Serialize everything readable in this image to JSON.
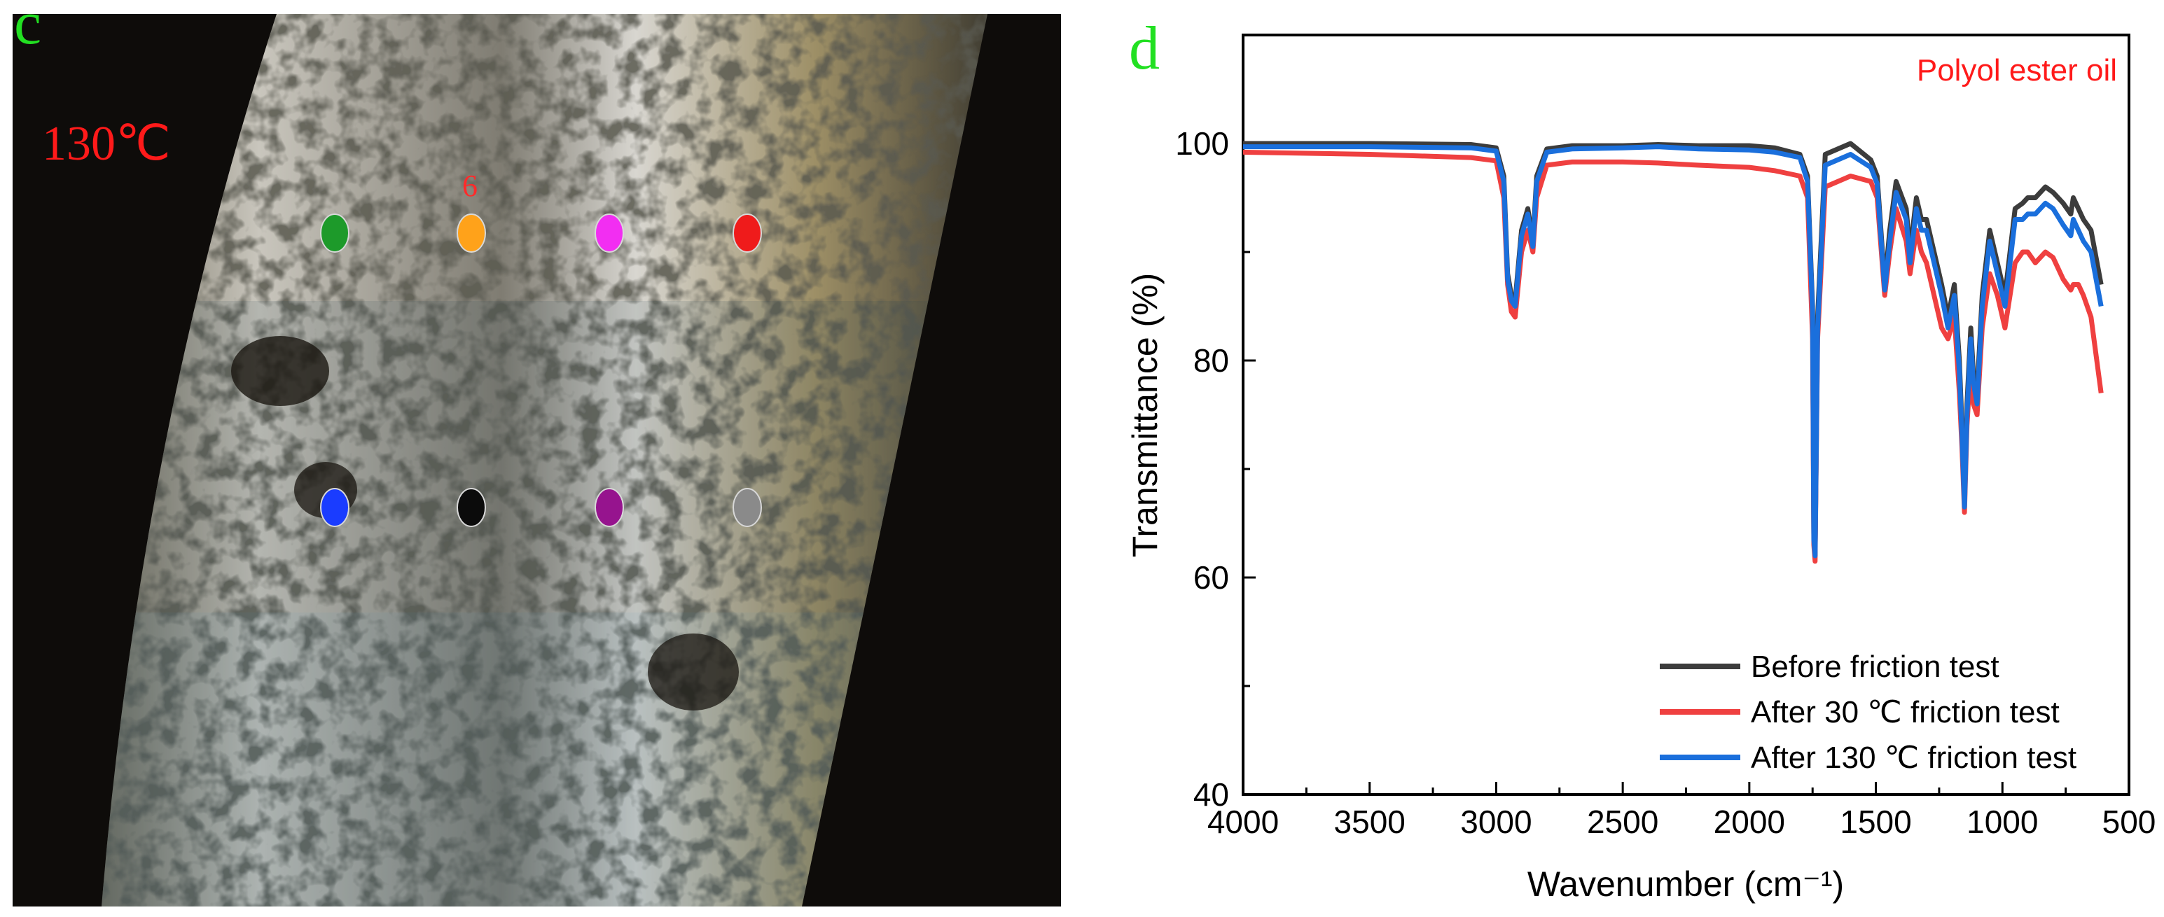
{
  "panel_c": {
    "letter": "c",
    "temperature": "130℃",
    "spot_label": "6",
    "spots": [
      {
        "color": "#1d9a2a"
      },
      {
        "color": "#ffa21a"
      },
      {
        "color": "#f22ef2"
      },
      {
        "color": "#ef1b1b"
      },
      {
        "color": "#1a3cff"
      },
      {
        "color": "#0b0b0b"
      },
      {
        "color": "#96148e"
      },
      {
        "color": "#8a8a8a"
      }
    ]
  },
  "panel_d": {
    "letter": "d",
    "annotation": "Polyol ester oil"
  },
  "chart_data": {
    "type": "line",
    "title": "",
    "xlabel": "Wavenumber (cm⁻¹)",
    "ylabel": "Transmittance (%)",
    "xlim": [
      4000,
      500
    ],
    "ylim": [
      40,
      110
    ],
    "x_reversed": true,
    "xticks": [
      "4000",
      "3500",
      "3000",
      "2500",
      "2000",
      "1500",
      "1000",
      "500"
    ],
    "yticks": [
      "40",
      "60",
      "80",
      "100"
    ],
    "legend_position": "bottom-right",
    "grid": false,
    "series": [
      {
        "name": "Before friction test",
        "color": "#3c3c3c",
        "x": [
          4000,
          3500,
          3100,
          3000,
          2970,
          2955,
          2940,
          2925,
          2900,
          2875,
          2855,
          2840,
          2800,
          2700,
          2500,
          2360,
          2200,
          2000,
          1900,
          1800,
          1770,
          1750,
          1745,
          1740,
          1730,
          1700,
          1600,
          1520,
          1495,
          1465,
          1445,
          1420,
          1380,
          1365,
          1340,
          1320,
          1300,
          1270,
          1240,
          1215,
          1190,
          1170,
          1160,
          1150,
          1140,
          1125,
          1115,
          1100,
          1080,
          1050,
          1020,
          990,
          950,
          920,
          900,
          870,
          830,
          800,
          760,
          730,
          720,
          700,
          680,
          650,
          610
        ],
        "y": [
          100,
          100,
          99.9,
          99.6,
          97,
          88,
          86,
          85.5,
          92,
          94,
          91,
          97,
          99.5,
          99.8,
          99.8,
          99.9,
          99.8,
          99.8,
          99.6,
          99,
          97,
          85,
          64,
          62,
          84,
          99,
          100,
          98.5,
          97,
          87,
          92,
          96.5,
          94,
          90,
          95,
          93,
          93,
          90,
          87,
          84,
          87,
          80,
          74,
          67,
          76,
          83,
          79,
          77,
          86,
          92,
          89,
          86,
          94,
          94.5,
          95,
          95,
          96,
          95.5,
          94.5,
          93.5,
          95,
          94,
          93,
          92,
          87
        ]
      },
      {
        "name": "After 30 ℃ friction test",
        "color": "#ef4040",
        "x": [
          4000,
          3500,
          3100,
          3000,
          2970,
          2955,
          2940,
          2925,
          2900,
          2875,
          2855,
          2840,
          2800,
          2700,
          2500,
          2360,
          2200,
          2000,
          1900,
          1800,
          1770,
          1750,
          1745,
          1740,
          1730,
          1700,
          1600,
          1520,
          1495,
          1465,
          1445,
          1420,
          1380,
          1365,
          1340,
          1320,
          1300,
          1270,
          1240,
          1215,
          1190,
          1170,
          1160,
          1150,
          1140,
          1125,
          1115,
          1100,
          1080,
          1050,
          1020,
          990,
          950,
          920,
          900,
          870,
          830,
          800,
          760,
          730,
          720,
          700,
          680,
          650,
          610
        ],
        "y": [
          99.2,
          99,
          98.7,
          98.4,
          95,
          87,
          84.5,
          84,
          90,
          92,
          90,
          95,
          98,
          98.3,
          98.3,
          98.2,
          98,
          97.8,
          97.5,
          97,
          95,
          82,
          63,
          61.5,
          82,
          96,
          97,
          96.5,
          95,
          86,
          90,
          94,
          91,
          88,
          92,
          90,
          89,
          86,
          83,
          82,
          84,
          77,
          72,
          66,
          74,
          80,
          76,
          75,
          83,
          88,
          86,
          83,
          89,
          90,
          90,
          89,
          90,
          89.5,
          87.5,
          86.5,
          87,
          87,
          86,
          84,
          77
        ]
      },
      {
        "name": "After 130 ℃ friction test",
        "color": "#1a6fdc",
        "x": [
          4000,
          3500,
          3100,
          3000,
          2970,
          2955,
          2940,
          2925,
          2900,
          2875,
          2855,
          2840,
          2800,
          2700,
          2500,
          2360,
          2200,
          2000,
          1900,
          1800,
          1770,
          1750,
          1745,
          1740,
          1730,
          1700,
          1600,
          1520,
          1495,
          1465,
          1445,
          1420,
          1380,
          1365,
          1340,
          1320,
          1300,
          1270,
          1240,
          1215,
          1190,
          1170,
          1160,
          1150,
          1140,
          1125,
          1115,
          1100,
          1080,
          1050,
          1020,
          990,
          950,
          920,
          900,
          870,
          830,
          800,
          760,
          730,
          720,
          700,
          680,
          650,
          610
        ],
        "y": [
          99.7,
          99.7,
          99.6,
          99.3,
          96.5,
          87.5,
          85.5,
          85,
          91.5,
          93.5,
          90.5,
          96.5,
          99.2,
          99.5,
          99.6,
          99.7,
          99.5,
          99.4,
          99.2,
          98.7,
          96.5,
          84.5,
          63.5,
          62,
          83,
          98,
          99,
          97.8,
          96.3,
          86.5,
          91,
          95.5,
          93,
          89,
          94,
          92,
          92,
          89,
          86,
          83,
          86,
          79,
          73,
          66.5,
          75,
          82,
          78,
          76,
          85,
          91,
          88,
          85,
          93,
          93,
          93.5,
          93.5,
          94.5,
          94,
          92.5,
          91.5,
          93,
          92,
          91,
          90,
          85
        ]
      }
    ]
  }
}
